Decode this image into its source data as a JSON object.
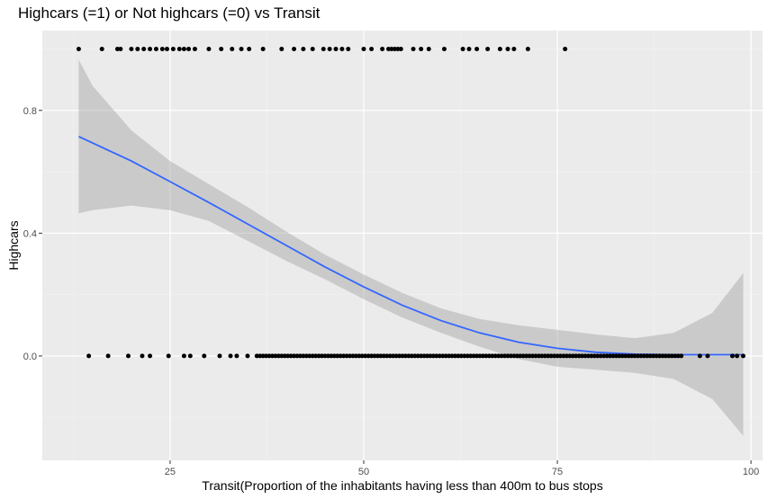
{
  "chart_data": {
    "type": "scatter",
    "title": "Highcars (=1) or Not highcars (=0) vs Transit",
    "xlabel": "Transit(Proportion of the inhabitants having less than 400m to bus stops",
    "ylabel": "Highcars",
    "xlim": [
      8.5,
      101.5
    ],
    "ylim": [
      -0.34,
      1.06
    ],
    "x_ticks": [
      25,
      50,
      75,
      100
    ],
    "x_tick_labels": [
      "25",
      "50",
      "75",
      "100"
    ],
    "y_ticks": [
      0.0,
      0.4,
      0.8
    ],
    "y_tick_labels": [
      "0.0",
      "0.4",
      "0.8"
    ],
    "grid": true,
    "background": "#ebebeb",
    "point_color": "#000000",
    "points_y1": [
      13.2,
      16.2,
      18.2,
      18.6,
      20.0,
      20.8,
      21.6,
      22.4,
      23.2,
      24.0,
      24.6,
      25.4,
      26.2,
      26.8,
      27.4,
      28.2,
      30.0,
      31.6,
      33.0,
      34.2,
      35.2,
      37.0,
      39.4,
      41.0,
      42.2,
      43.4,
      44.8,
      45.6,
      46.4,
      47.2,
      48.0,
      50.0,
      51.0,
      52.4,
      53.2,
      53.6,
      54.0,
      54.4,
      54.8,
      56.4,
      57.4,
      58.4,
      60.4,
      62.8,
      63.6,
      64.6,
      66.0,
      67.6,
      68.6,
      69.4,
      71.2,
      76.0
    ],
    "points_y0": [
      14.5,
      17.0,
      19.6,
      21.4,
      22.4,
      24.8,
      26.8,
      27.6,
      29.4,
      31.4,
      32.8,
      33.6,
      35.0,
      36.2,
      36.6,
      37.0,
      37.4,
      37.8,
      38.2,
      38.6,
      39.0,
      39.4,
      39.8,
      40.2,
      40.6,
      41.0,
      41.4,
      41.8,
      42.2,
      42.6,
      43.0,
      43.4,
      43.8,
      44.2,
      44.6,
      45.0,
      45.4,
      45.8,
      46.2,
      46.6,
      47.0,
      47.4,
      47.8,
      48.2,
      48.6,
      49.0,
      49.4,
      49.8,
      50.2,
      50.6,
      51.0,
      51.4,
      51.8,
      52.2,
      52.6,
      53.0,
      53.4,
      53.8,
      54.2,
      54.6,
      55.0,
      55.4,
      55.8,
      56.2,
      56.6,
      57.0,
      57.4,
      57.8,
      58.2,
      58.6,
      59.0,
      59.4,
      59.8,
      60.2,
      60.6,
      61.0,
      61.4,
      61.8,
      62.2,
      62.6,
      63.0,
      63.4,
      63.8,
      64.2,
      64.6,
      65.0,
      65.4,
      65.8,
      66.2,
      66.6,
      67.0,
      67.4,
      67.8,
      68.2,
      68.6,
      69.0,
      69.4,
      69.8,
      70.2,
      70.6,
      71.0,
      71.4,
      71.8,
      72.2,
      72.6,
      73.0,
      73.4,
      73.8,
      74.2,
      74.6,
      75.0,
      75.4,
      75.8,
      76.2,
      76.6,
      77.0,
      77.4,
      77.8,
      78.2,
      78.6,
      79.0,
      79.4,
      79.8,
      80.2,
      80.6,
      81.0,
      81.4,
      81.8,
      82.2,
      82.6,
      83.0,
      83.4,
      83.8,
      84.2,
      84.6,
      85.0,
      85.4,
      85.8,
      86.2,
      86.6,
      87.0,
      87.4,
      87.8,
      88.2,
      88.6,
      89.0,
      89.4,
      89.8,
      90.2,
      90.6,
      91.0,
      93.4,
      94.4,
      97.6,
      98.2,
      99.0
    ],
    "smooth_line": {
      "color": "#3366ff",
      "x": [
        13.2,
        20.0,
        25.0,
        30.0,
        35.0,
        40.0,
        45.0,
        50.0,
        55.0,
        60.0,
        65.0,
        70.0,
        75.0,
        80.0,
        85.0,
        90.0,
        95.0,
        99.0
      ],
      "y": [
        0.715,
        0.635,
        0.568,
        0.5,
        0.43,
        0.36,
        0.29,
        0.225,
        0.165,
        0.115,
        0.075,
        0.045,
        0.025,
        0.012,
        0.006,
        0.004,
        0.004,
        0.004
      ]
    },
    "confidence_band": {
      "color": "#999999",
      "x": [
        13.2,
        15.0,
        20.0,
        25.0,
        30.0,
        35.0,
        40.0,
        45.0,
        50.0,
        55.0,
        60.0,
        65.0,
        70.0,
        75.0,
        80.0,
        85.0,
        90.0,
        95.0,
        99.0
      ],
      "upper": [
        0.965,
        0.88,
        0.735,
        0.635,
        0.56,
        0.485,
        0.405,
        0.33,
        0.265,
        0.205,
        0.155,
        0.12,
        0.1,
        0.085,
        0.07,
        0.058,
        0.075,
        0.14,
        0.27
      ],
      "lower": [
        0.465,
        0.475,
        0.49,
        0.475,
        0.44,
        0.375,
        0.31,
        0.25,
        0.185,
        0.125,
        0.075,
        0.03,
        -0.01,
        -0.035,
        -0.045,
        -0.055,
        -0.075,
        -0.14,
        -0.26
      ]
    }
  }
}
